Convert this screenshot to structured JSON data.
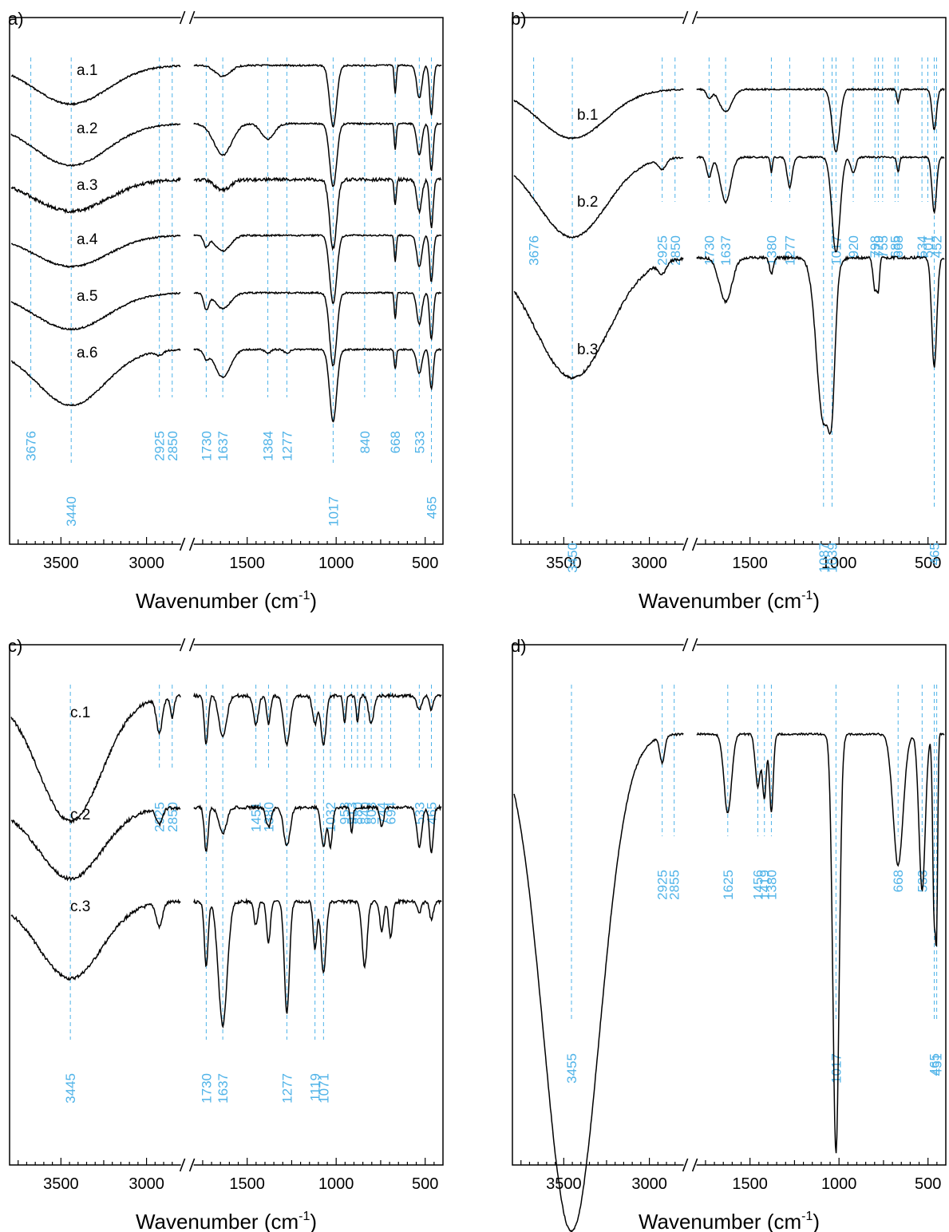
{
  "colors": {
    "peak": "#4fb3e8",
    "spectrum": "#000000",
    "axis": "#000000"
  },
  "chart_data": [
    {
      "type": "line",
      "panel": "a)",
      "xlabel": "Wavenumber (cm",
      "xlabel_sup": "-1",
      "xlabel_close": ")",
      "x_axis_break": [
        2800,
        1800
      ],
      "xlim": [
        3800,
        400
      ],
      "xticks": [
        3500,
        3000,
        1500,
        1000,
        500
      ],
      "yaxis": "offset transmittance, no tick labels",
      "peaks": [
        3676,
        3440,
        2925,
        2850,
        1730,
        1637,
        1384,
        1277,
        1017,
        840,
        668,
        533,
        465
      ],
      "peak_label_alignment": [
        "top",
        "bottom",
        "top",
        "top",
        "top",
        "top",
        "top",
        "top",
        "bottom",
        "top",
        "top",
        "top",
        "bottom"
      ],
      "series": [
        {
          "name": "a.1",
          "offset": 0,
          "scale": 0.6,
          "bands": [
            [
              3440,
              0.35,
              300
            ],
            [
              1637,
              0.1,
              60
            ],
            [
              1017,
              0.55,
              28
            ],
            [
              668,
              0.25,
              8
            ],
            [
              533,
              0.3,
              20
            ],
            [
              465,
              0.45,
              14
            ]
          ],
          "noise": 0.005
        },
        {
          "name": "a.2",
          "offset": 1,
          "scale": 0.6,
          "bands": [
            [
              3440,
              0.4,
              300
            ],
            [
              1637,
              0.3,
              70
            ],
            [
              1384,
              0.15,
              50
            ],
            [
              1017,
              0.6,
              28
            ],
            [
              668,
              0.25,
              8
            ],
            [
              533,
              0.3,
              20
            ],
            [
              465,
              0.45,
              14
            ]
          ],
          "noise": 0.005
        },
        {
          "name": "a.3",
          "offset": 2,
          "scale": 0.6,
          "bands": [
            [
              3440,
              0.3,
              300
            ],
            [
              1637,
              0.1,
              60
            ],
            [
              1017,
              0.65,
              28
            ],
            [
              668,
              0.25,
              8
            ],
            [
              533,
              0.3,
              20
            ],
            [
              465,
              0.45,
              14
            ]
          ],
          "noise": 0.01
        },
        {
          "name": "a.4",
          "offset": 3,
          "scale": 0.6,
          "bands": [
            [
              3440,
              0.3,
              300
            ],
            [
              1730,
              0.1,
              20
            ],
            [
              1637,
              0.15,
              60
            ],
            [
              1017,
              0.65,
              28
            ],
            [
              668,
              0.25,
              8
            ],
            [
              533,
              0.3,
              20
            ],
            [
              465,
              0.45,
              14
            ]
          ],
          "noise": 0.005
        },
        {
          "name": "a.5",
          "offset": 4,
          "scale": 0.6,
          "bands": [
            [
              3440,
              0.35,
              300
            ],
            [
              1730,
              0.15,
              20
            ],
            [
              1637,
              0.15,
              60
            ],
            [
              1017,
              0.7,
              28
            ],
            [
              668,
              0.25,
              8
            ],
            [
              533,
              0.3,
              20
            ],
            [
              465,
              0.45,
              14
            ]
          ],
          "noise": 0.005
        },
        {
          "name": "a.6",
          "offset": 5,
          "scale": 0.6,
          "bands": [
            [
              3440,
              0.7,
              280
            ],
            [
              2925,
              0.05,
              30
            ],
            [
              1730,
              0.1,
              20
            ],
            [
              1637,
              0.35,
              60
            ],
            [
              1384,
              0.05,
              20
            ],
            [
              1277,
              0.05,
              20
            ],
            [
              1017,
              0.9,
              28
            ],
            [
              668,
              0.25,
              8
            ],
            [
              533,
              0.3,
              20
            ],
            [
              465,
              0.5,
              14
            ]
          ],
          "noise": 0.005
        }
      ]
    },
    {
      "type": "line",
      "panel": "b)",
      "xlabel": "Wavenumber (cm",
      "xlabel_sup": "-1",
      "xlabel_close": ")",
      "x_axis_break": [
        2800,
        1800
      ],
      "xlim": [
        3800,
        400
      ],
      "xticks": [
        3500,
        3000,
        1500,
        1000,
        500
      ],
      "yaxis": "offset transmittance, no tick labels",
      "peaks": [
        3676,
        3450,
        2925,
        2850,
        1730,
        1637,
        1380,
        1277,
        1087,
        1039,
        1017,
        920,
        798,
        779,
        755,
        685,
        668,
        534,
        501,
        465,
        452
      ],
      "peak_label_alignment": [
        "top",
        "bottom",
        "top",
        "top",
        "top",
        "top",
        "top",
        "top",
        "bottom",
        "bottom",
        "top",
        "top",
        "top",
        "top",
        "top",
        "top",
        "top",
        "top",
        "top",
        "bottom",
        "top"
      ],
      "series": [
        {
          "name": "b.1",
          "offset": 0,
          "scale": 0.6,
          "bands": [
            [
              3450,
              0.55,
              280
            ],
            [
              1637,
              0.25,
              50
            ],
            [
              1730,
              0.1,
              20
            ],
            [
              1017,
              0.7,
              30
            ],
            [
              668,
              0.15,
              10
            ],
            [
              465,
              0.45,
              18
            ]
          ],
          "noise": 0.005
        },
        {
          "name": "b.2",
          "offset": 1,
          "scale": 0.7,
          "bands": [
            [
              3450,
              0.8,
              280
            ],
            [
              2925,
              0.1,
              30
            ],
            [
              1730,
              0.2,
              20
            ],
            [
              1637,
              0.45,
              40
            ],
            [
              1380,
              0.15,
              8
            ],
            [
              1277,
              0.3,
              20
            ],
            [
              1017,
              0.95,
              32
            ],
            [
              920,
              0.15,
              20
            ],
            [
              668,
              0.15,
              10
            ],
            [
              465,
              0.55,
              18
            ]
          ],
          "noise": 0.005
        },
        {
          "name": "b.3",
          "offset": 2.05,
          "scale": 0.75,
          "bands": [
            [
              3450,
              1.1,
              300
            ],
            [
              2925,
              0.1,
              30
            ],
            [
              1637,
              0.4,
              50
            ],
            [
              1380,
              0.15,
              15
            ],
            [
              1087,
              1.5,
              55
            ],
            [
              1039,
              0.8,
              25
            ],
            [
              798,
              0.3,
              15
            ],
            [
              779,
              0.25,
              10
            ],
            [
              465,
              1.0,
              20
            ]
          ],
          "noise": 0.008
        }
      ]
    },
    {
      "type": "line",
      "panel": "c)",
      "xlabel": "Wavenumber (cm",
      "xlabel_sup": "-1",
      "xlabel_close": ")",
      "x_axis_break": [
        2800,
        1800
      ],
      "xlim": [
        3800,
        400
      ],
      "xticks": [
        3500,
        3000,
        1500,
        1000,
        500
      ],
      "yaxis": "offset transmittance, no tick labels",
      "peaks": [
        3445,
        2925,
        2850,
        1730,
        1637,
        1451,
        1380,
        1277,
        1119,
        1071,
        1032,
        953,
        913,
        880,
        840,
        803,
        744,
        694,
        533,
        465
      ],
      "peak_label_alignment": [
        "bottom",
        "top",
        "top",
        "bottom",
        "bottom",
        "top",
        "top",
        "bottom",
        "bottom",
        "bottom",
        "top",
        "top",
        "top",
        "top",
        "top",
        "top",
        "top",
        "top",
        "top",
        "top"
      ],
      "series": [
        {
          "name": "c.1",
          "offset": 0,
          "scale": 0.7,
          "bands": [
            [
              3445,
              0.9,
              260
            ],
            [
              2925,
              0.25,
              25
            ],
            [
              2850,
              0.15,
              15
            ],
            [
              1730,
              0.35,
              15
            ],
            [
              1637,
              0.3,
              30
            ],
            [
              1451,
              0.2,
              20
            ],
            [
              1380,
              0.2,
              15
            ],
            [
              1277,
              0.35,
              25
            ],
            [
              1119,
              0.2,
              20
            ],
            [
              1071,
              0.35,
              20
            ],
            [
              953,
              0.2,
              10
            ],
            [
              880,
              0.2,
              10
            ],
            [
              803,
              0.2,
              20
            ],
            [
              533,
              0.1,
              20
            ],
            [
              465,
              0.1,
              15
            ]
          ],
          "noise": 0.01
        },
        {
          "name": "c.2",
          "offset": 1.1,
          "scale": 0.65,
          "bands": [
            [
              3445,
              0.55,
              260
            ],
            [
              2925,
              0.12,
              25
            ],
            [
              1730,
              0.35,
              15
            ],
            [
              1637,
              0.2,
              30
            ],
            [
              1380,
              0.15,
              20
            ],
            [
              1277,
              0.3,
              25
            ],
            [
              1071,
              0.3,
              20
            ],
            [
              1032,
              0.3,
              15
            ],
            [
              913,
              0.2,
              10
            ],
            [
              744,
              0.15,
              15
            ],
            [
              533,
              0.3,
              20
            ],
            [
              465,
              0.35,
              15
            ]
          ],
          "noise": 0.01
        },
        {
          "name": "c.3",
          "offset": 2.0,
          "scale": 0.7,
          "bands": [
            [
              3445,
              0.65,
              260
            ],
            [
              2925,
              0.2,
              25
            ],
            [
              1730,
              0.55,
              15
            ],
            [
              1637,
              1.05,
              35
            ],
            [
              1451,
              0.2,
              15
            ],
            [
              1380,
              0.35,
              15
            ],
            [
              1277,
              0.95,
              20
            ],
            [
              1119,
              0.4,
              15
            ],
            [
              1071,
              0.6,
              20
            ],
            [
              840,
              0.55,
              20
            ],
            [
              744,
              0.25,
              15
            ],
            [
              694,
              0.3,
              15
            ],
            [
              533,
              0.1,
              15
            ],
            [
              465,
              0.15,
              15
            ]
          ],
          "noise": 0.01
        }
      ]
    },
    {
      "type": "line",
      "panel": "d)",
      "xlabel": "Wavenumber (cm",
      "xlabel_sup": "-1",
      "xlabel_close": ")",
      "x_axis_break": [
        2800,
        1800
      ],
      "xlim": [
        3800,
        400
      ],
      "xticks": [
        3500,
        3000,
        1500,
        1000,
        500
      ],
      "yaxis": "offset transmittance, no tick labels",
      "peaks": [
        3455,
        2925,
        2855,
        1625,
        1456,
        1419,
        1380,
        1017,
        668,
        533,
        465,
        451
      ],
      "peak_label_alignment": [
        "bottom",
        "top",
        "top",
        "top",
        "top",
        "top",
        "top",
        "bottom",
        "top",
        "top",
        "bottom",
        "bottom"
      ],
      "series": [
        {
          "name": "",
          "offset": 0,
          "scale": 1.0,
          "bands": [
            [
              3455,
              0.95,
              230
            ],
            [
              2925,
              0.05,
              20
            ],
            [
              1625,
              0.15,
              30
            ],
            [
              1456,
              0.1,
              20
            ],
            [
              1419,
              0.12,
              15
            ],
            [
              1380,
              0.15,
              15
            ],
            [
              1017,
              0.8,
              25
            ],
            [
              668,
              0.25,
              40
            ],
            [
              533,
              0.3,
              25
            ],
            [
              465,
              0.35,
              12
            ],
            [
              451,
              0.3,
              8
            ]
          ],
          "noise": 0.006
        }
      ]
    }
  ]
}
